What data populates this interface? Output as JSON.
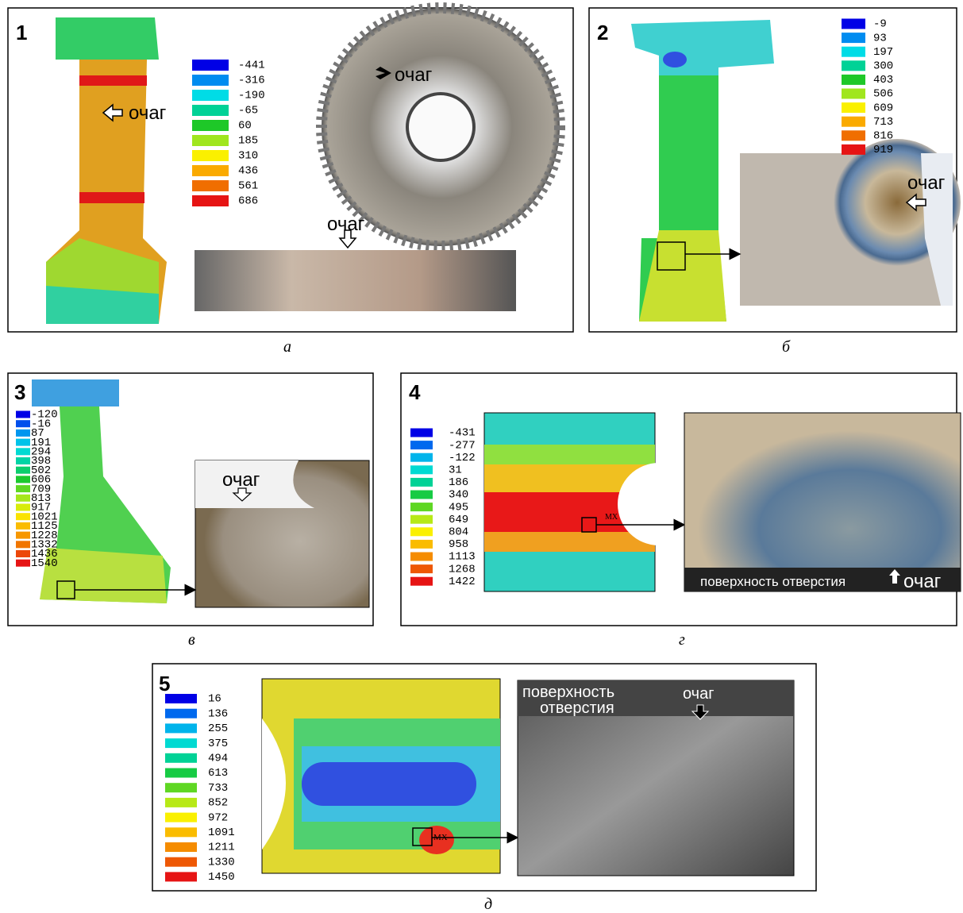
{
  "panels": [
    {
      "number": "1",
      "legend": [
        -441,
        -316,
        -190,
        -65,
        60,
        185,
        310,
        436,
        561,
        686
      ],
      "labels": [
        "очаг",
        "очаг",
        "очаг"
      ],
      "caption": "а"
    },
    {
      "number": "2",
      "legend": [
        -9,
        93,
        197,
        300,
        403,
        506,
        609,
        713,
        816,
        919
      ],
      "labels": [
        "очаг"
      ],
      "caption": "б"
    },
    {
      "number": "3",
      "legend": [
        -120,
        -16,
        87,
        191,
        294,
        398,
        502,
        606,
        709,
        813,
        917,
        1021,
        1125,
        1228,
        1332,
        1436,
        1540
      ],
      "labels": [
        "очаг"
      ],
      "caption": "в"
    },
    {
      "number": "4",
      "legend": [
        -431,
        -277,
        -122,
        31,
        186,
        340,
        495,
        649,
        804,
        958,
        1113,
        1268,
        1422
      ],
      "labels": [
        "МХ",
        "поверхность отверстия",
        "очаг"
      ],
      "caption": "г"
    },
    {
      "number": "5",
      "legend": [
        16,
        136,
        255,
        375,
        494,
        613,
        733,
        852,
        972,
        1091,
        1211,
        1330,
        1450
      ],
      "labels": [
        "поверхность",
        "отверстия",
        "очаг",
        "МХ"
      ],
      "caption": "д"
    }
  ]
}
